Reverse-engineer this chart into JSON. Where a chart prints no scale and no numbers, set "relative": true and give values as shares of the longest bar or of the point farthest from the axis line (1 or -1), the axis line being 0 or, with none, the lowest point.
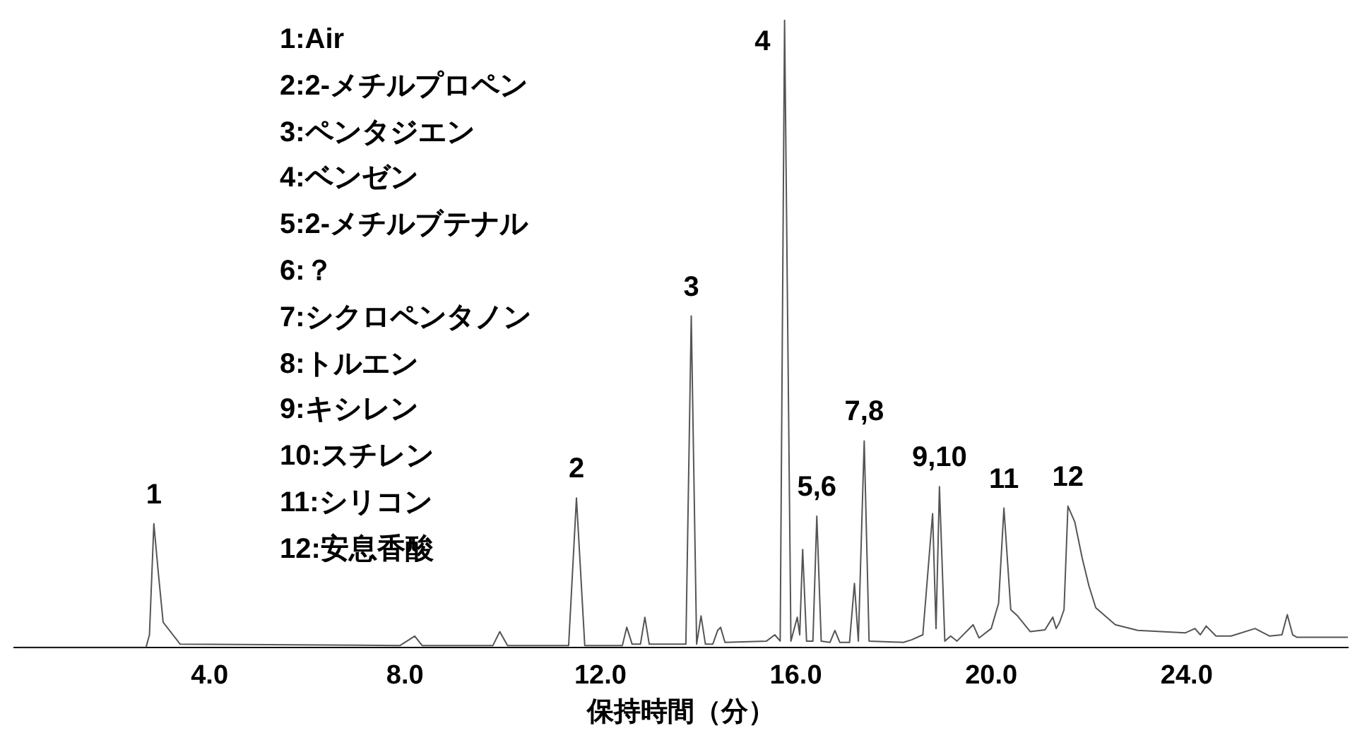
{
  "chart_data": {
    "type": "line",
    "relative": true,
    "xlabel": "保持時間（分）",
    "xlim": [
      0,
      27.3
    ],
    "xticks": [
      {
        "value": 4,
        "label": "4.0"
      },
      {
        "value": 8,
        "label": "8.0"
      },
      {
        "value": 12,
        "label": "12.0"
      },
      {
        "value": 16,
        "label": "16.0"
      },
      {
        "value": 20,
        "label": "20.0"
      },
      {
        "value": 24,
        "label": "24.0"
      }
    ],
    "tick_labels": "x",
    "grid": false,
    "legend": false,
    "marker": "none",
    "line_style": "solid",
    "series": [
      {
        "color": "#555555",
        "x": [
          0.1,
          2.7,
          2.77,
          2.86,
          2.95,
          3.05,
          3.4,
          7.9,
          8.2,
          8.35,
          9.8,
          9.94,
          10.1,
          11.35,
          11.51,
          11.68,
          12.45,
          12.54,
          12.65,
          12.82,
          12.91,
          13.0,
          13.75,
          13.86,
          13.97,
          14.06,
          14.15,
          14.3,
          14.4,
          14.46,
          14.55,
          15.4,
          15.57,
          15.68,
          15.77,
          15.9,
          16.03,
          16.08,
          16.14,
          16.22,
          16.35,
          16.43,
          16.52,
          16.7,
          16.8,
          16.9,
          17.1,
          17.2,
          17.28,
          17.4,
          17.5,
          18.2,
          18.37,
          18.6,
          18.8,
          18.87,
          18.94,
          19.05,
          19.17,
          19.3,
          19.63,
          19.75,
          20.0,
          20.15,
          20.26,
          20.4,
          20.54,
          20.8,
          21.1,
          21.26,
          21.33,
          21.4,
          21.49,
          21.57,
          21.71,
          21.86,
          22.0,
          22.14,
          22.54,
          23.0,
          23.97,
          24.17,
          24.28,
          24.4,
          24.6,
          24.91,
          25.4,
          25.7,
          25.95,
          26.06,
          26.17,
          26.26,
          27.3
        ],
        "values": [
          0,
          0,
          0.02,
          0.197,
          0.12,
          0.04,
          0.005,
          0.003,
          0.018,
          0.003,
          0.003,
          0.025,
          0.003,
          0.003,
          0.238,
          0.003,
          0.003,
          0.032,
          0.005,
          0.005,
          0.048,
          0.005,
          0.005,
          0.528,
          0.005,
          0.05,
          0.005,
          0.005,
          0.027,
          0.032,
          0.008,
          0.01,
          0.02,
          0.01,
          1.0,
          0.01,
          0.048,
          0.02,
          0.156,
          0.01,
          0.01,
          0.209,
          0.01,
          0.008,
          0.027,
          0.008,
          0.008,
          0.102,
          0.01,
          0.329,
          0.01,
          0.008,
          0.012,
          0.02,
          0.213,
          0.03,
          0.256,
          0.01,
          0.018,
          0.01,
          0.036,
          0.015,
          0.03,
          0.07,
          0.222,
          0.06,
          0.05,
          0.025,
          0.028,
          0.048,
          0.03,
          0.04,
          0.06,
          0.225,
          0.2,
          0.143,
          0.098,
          0.063,
          0.036,
          0.027,
          0.023,
          0.03,
          0.02,
          0.034,
          0.018,
          0.018,
          0.03,
          0.018,
          0.02,
          0.052,
          0.02,
          0.016,
          0.016
        ]
      }
    ],
    "annotations": [
      {
        "text": "1",
        "x": 2.86,
        "y": 0.197
      },
      {
        "text": "2",
        "x": 11.51,
        "y": 0.238
      },
      {
        "text": "3",
        "x": 13.86,
        "y": 0.528
      },
      {
        "text": "4",
        "x": 15.77,
        "y": 1.0
      },
      {
        "text": "5,6",
        "x": 16.43,
        "y": 0.209
      },
      {
        "text": "7,8",
        "x": 17.4,
        "y": 0.329
      },
      {
        "text": "9,10",
        "x": 18.94,
        "y": 0.256
      },
      {
        "text": "11",
        "x": 20.26,
        "y": 0.222
      },
      {
        "text": "12",
        "x": 21.57,
        "y": 0.225
      },
      "1:Air",
      "2:2-メチルプロペン",
      "3:ペンタジエン",
      "4:ベンゼン",
      "5:2-メチルブテナル",
      "6:？",
      "7:シクロペンタノン",
      "8:トルエン",
      "9:キシレン",
      "10:スチレン",
      "11:シリコン",
      "12:安息香酸"
    ]
  }
}
